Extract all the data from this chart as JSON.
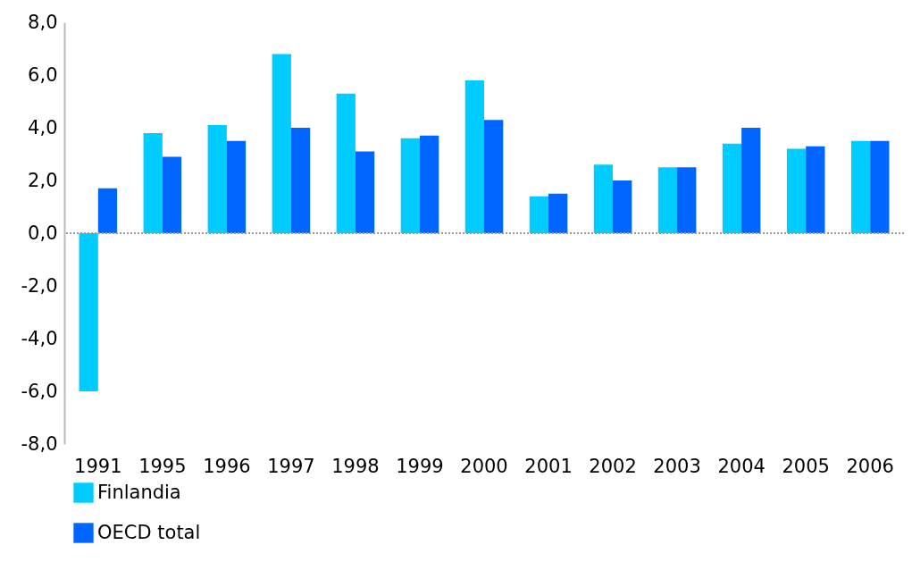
{
  "chart_data": {
    "type": "bar",
    "categories": [
      "1991",
      "1995",
      "1996",
      "1997",
      "1998",
      "1999",
      "2000",
      "2001",
      "2002",
      "2003",
      "2004",
      "2005",
      "2006"
    ],
    "series": [
      {
        "name": "Finlandia",
        "color": "#00ccff",
        "values": [
          -6.0,
          3.8,
          4.1,
          6.8,
          5.3,
          3.6,
          5.8,
          1.4,
          2.6,
          2.5,
          3.4,
          3.2,
          3.5
        ]
      },
      {
        "name": "OECD total",
        "color": "#0066ff",
        "values": [
          1.7,
          2.9,
          3.5,
          4.0,
          3.1,
          3.7,
          4.3,
          1.5,
          2.0,
          2.5,
          4.0,
          3.3,
          3.5
        ]
      }
    ],
    "ylim": [
      -8,
      8
    ],
    "yticks": [
      {
        "value": -8,
        "label": "-8,0"
      },
      {
        "value": -6,
        "label": "-6,0"
      },
      {
        "value": -4,
        "label": "-4,0"
      },
      {
        "value": -2,
        "label": "-2,0"
      },
      {
        "value": 0,
        "label": "0,0"
      },
      {
        "value": 2,
        "label": "2,0"
      },
      {
        "value": 4,
        "label": "4,0"
      },
      {
        "value": 6,
        "label": "6,0"
      },
      {
        "value": 8,
        "label": "8,0"
      }
    ],
    "ref_lines": [
      {
        "axis": "y",
        "value": 0,
        "color": "#999999",
        "line_style": "dotted"
      }
    ],
    "grid": false,
    "legend": "bottom left"
  }
}
